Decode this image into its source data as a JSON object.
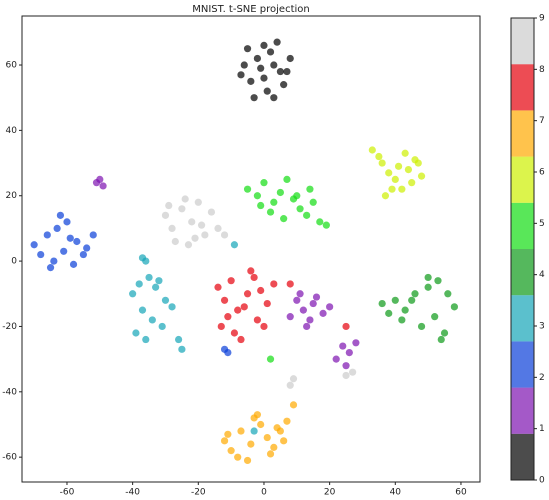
{
  "chart_data": {
    "type": "scatter",
    "title": "MNIST. t-SNE projection",
    "xlim": [
      -73.7,
      65.8
    ],
    "ylim": [
      -67.6,
      75
    ],
    "xticks": [
      -60,
      -40,
      -20,
      0,
      20,
      40,
      60
    ],
    "yticks": [
      -60,
      -40,
      -20,
      0,
      20,
      40,
      60
    ],
    "alpha": 0.7,
    "colorbar": {
      "clim": [
        0,
        9
      ],
      "ticks": [
        0,
        1,
        2,
        3,
        4,
        5,
        6,
        7,
        8,
        9
      ]
    },
    "series": [
      {
        "color": "#000000",
        "x": [
          -5,
          -2,
          0,
          3,
          5,
          -7,
          -4,
          1,
          6,
          8,
          -1,
          2,
          -6,
          4,
          0,
          7,
          -3,
          3
        ],
        "y": [
          65,
          62,
          66,
          60,
          58,
          57,
          55,
          52,
          54,
          62,
          59,
          64,
          60,
          67,
          56,
          58,
          50,
          50
        ]
      },
      {
        "color": "#7d12b0",
        "x": [
          10,
          12,
          15,
          18,
          13,
          8,
          16,
          20,
          11,
          14,
          24,
          26,
          28,
          22,
          25,
          -51,
          -49,
          -50
        ],
        "y": [
          -12,
          -15,
          -13,
          -16,
          -20,
          -17,
          -11,
          -14,
          -10,
          -18,
          -26,
          -28,
          -25,
          -30,
          -32,
          24,
          23,
          25
        ]
      },
      {
        "color": "#0a3ed8",
        "x": [
          -70,
          -66,
          -63,
          -60,
          -57,
          -54,
          -52,
          -68,
          -64,
          -61,
          -58,
          -55,
          -62,
          -59,
          -65,
          -12,
          -11
        ],
        "y": [
          5,
          8,
          10,
          12,
          6,
          4,
          8,
          2,
          0,
          3,
          -1,
          2,
          14,
          7,
          -2,
          -27,
          -28
        ]
      },
      {
        "color": "#16a5b8",
        "x": [
          -40,
          -38,
          -35,
          -33,
          -30,
          -28,
          -37,
          -34,
          -31,
          -39,
          -36,
          -32,
          -26,
          -25,
          -37,
          -36,
          -9,
          -3
        ],
        "y": [
          -10,
          -7,
          -5,
          -8,
          -12,
          -14,
          -15,
          -18,
          -20,
          -22,
          -24,
          -6,
          -24,
          -27,
          1,
          0,
          5,
          -52
        ]
      },
      {
        "color": "#0d9a18",
        "x": [
          36,
          40,
          43,
          46,
          50,
          53,
          56,
          58,
          42,
          48,
          52,
          55,
          45,
          38,
          50,
          54
        ],
        "y": [
          -13,
          -12,
          -15,
          -10,
          -8,
          -6,
          -10,
          -14,
          -18,
          -20,
          -17,
          -22,
          -12,
          -16,
          -5,
          -24
        ]
      },
      {
        "color": "#12dd12",
        "x": [
          -5,
          -2,
          0,
          3,
          5,
          7,
          9,
          11,
          13,
          15,
          17,
          19,
          2,
          6,
          10,
          14,
          -1,
          2
        ],
        "y": [
          22,
          20,
          24,
          18,
          21,
          25,
          19,
          16,
          14,
          18,
          12,
          11,
          15,
          13,
          20,
          22,
          17,
          -30
        ]
      },
      {
        "color": "#cdf000",
        "x": [
          33,
          36,
          38,
          40,
          42,
          44,
          46,
          48,
          35,
          39,
          43,
          47,
          37,
          41,
          45
        ],
        "y": [
          34,
          30,
          27,
          25,
          22,
          28,
          31,
          26,
          32,
          22,
          33,
          30,
          20,
          29,
          24
        ]
      },
      {
        "color": "#ffaa00",
        "x": [
          -12,
          -10,
          -7,
          -4,
          -1,
          1,
          3,
          5,
          7,
          -8,
          -5,
          -2,
          2,
          6,
          -11,
          -3,
          4,
          9
        ],
        "y": [
          -55,
          -58,
          -52,
          -56,
          -50,
          -54,
          -57,
          -52,
          -49,
          -60,
          -61,
          -47,
          -59,
          -55,
          -53,
          -48,
          -51,
          -44
        ]
      },
      {
        "color": "#e6000c",
        "x": [
          -14,
          -12,
          -10,
          -8,
          -5,
          -2,
          1,
          3,
          -13,
          -9,
          -6,
          -3,
          0,
          -11,
          -7,
          -4,
          -1,
          8,
          25
        ],
        "y": [
          -8,
          -12,
          -6,
          -15,
          -10,
          -18,
          -13,
          -7,
          -20,
          -22,
          -14,
          -5,
          -20,
          -17,
          -24,
          -3,
          -9,
          -7,
          -20
        ]
      },
      {
        "color": "#cccccc",
        "x": [
          -30,
          -28,
          -25,
          -22,
          -20,
          -18,
          -16,
          -14,
          -27,
          -23,
          -19,
          -29,
          -24,
          -21,
          -12,
          8,
          9,
          25,
          27
        ],
        "y": [
          14,
          10,
          16,
          12,
          18,
          8,
          15,
          10,
          6,
          5,
          11,
          17,
          19,
          7,
          8,
          -38,
          -36,
          -35,
          -34
        ]
      }
    ]
  }
}
